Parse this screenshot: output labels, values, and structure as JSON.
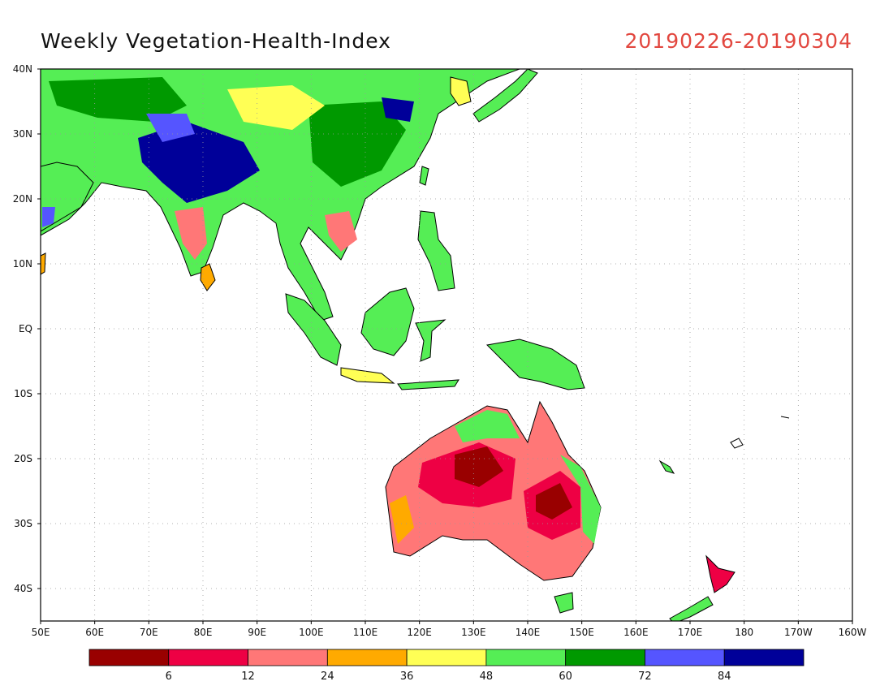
{
  "title": "Weekly Vegetation-Health-Index",
  "date_range": "20190226-20190304",
  "map": {
    "lat_ticks": [
      "40N",
      "30N",
      "20N",
      "10N",
      "EQ",
      "10S",
      "20S",
      "30S",
      "40S"
    ],
    "lon_ticks": [
      "50E",
      "60E",
      "70E",
      "80E",
      "90E",
      "100E",
      "110E",
      "120E",
      "130E",
      "140E",
      "150E",
      "160E",
      "170E",
      "180",
      "170W",
      "160W"
    ],
    "extent": {
      "lon_min": 50,
      "lon_max": 200,
      "lat_min": -45,
      "lat_max": 40
    },
    "grid": "dotted"
  },
  "colorbar": {
    "colors": [
      "#990000",
      "#ee0044",
      "#ff7777",
      "#ffaa00",
      "#ffff55",
      "#55ee55",
      "#009900",
      "#5555ff",
      "#000099"
    ],
    "labels": [
      "6",
      "12",
      "24",
      "36",
      "48",
      "60",
      "72",
      "84"
    ]
  }
}
